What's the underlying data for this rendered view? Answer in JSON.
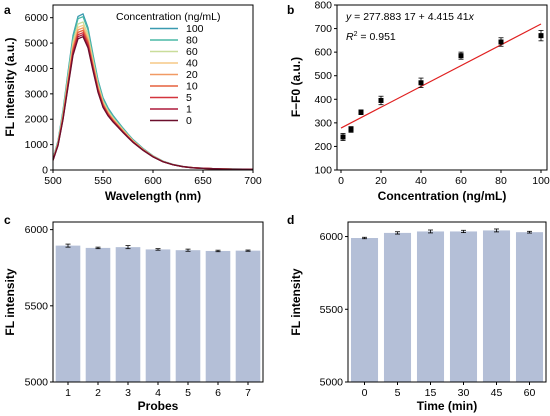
{
  "panels": {
    "a": {
      "letter": "a"
    },
    "b": {
      "letter": "b"
    },
    "c": {
      "letter": "c"
    },
    "d": {
      "letter": "d"
    }
  },
  "chart_data": [
    {
      "panel": "a",
      "type": "line",
      "xlabel": "Wavelength (nm)",
      "ylabel": "FL intensity (a.u.)",
      "xlim": [
        500,
        700
      ],
      "ylim": [
        0,
        6500
      ],
      "xticks": [
        500,
        550,
        600,
        650,
        700
      ],
      "yticks": [
        0,
        1000,
        2000,
        3000,
        4000,
        5000,
        6000
      ],
      "legend": {
        "title": "Concentration (ng/mL)",
        "placement": "top-right"
      },
      "x": [
        500,
        505,
        510,
        515,
        520,
        525,
        530,
        535,
        540,
        545,
        550,
        555,
        560,
        565,
        570,
        575,
        580,
        590,
        600,
        610,
        620,
        630,
        640,
        650,
        660,
        670,
        680,
        690,
        700
      ],
      "series": [
        {
          "name": "100",
          "color": "#3a9ab0",
          "values": [
            450,
            1150,
            2350,
            3850,
            5300,
            6050,
            6150,
            5600,
            4550,
            3550,
            2850,
            2450,
            2150,
            1900,
            1650,
            1420,
            1200,
            850,
            560,
            350,
            220,
            140,
            95,
            70,
            55,
            45,
            40,
            35,
            30
          ]
        },
        {
          "name": "80",
          "color": "#4ab8a6",
          "values": [
            440,
            1120,
            2300,
            3780,
            5220,
            5960,
            6040,
            5520,
            4490,
            3500,
            2810,
            2410,
            2120,
            1870,
            1630,
            1400,
            1185,
            840,
            555,
            345,
            218,
            138,
            94,
            69,
            54,
            44,
            39,
            34,
            29
          ]
        },
        {
          "name": "60",
          "color": "#c9dd9a",
          "values": [
            425,
            1080,
            2220,
            3650,
            5050,
            5750,
            5830,
            5330,
            4340,
            3390,
            2720,
            2340,
            2060,
            1820,
            1590,
            1370,
            1160,
            825,
            545,
            340,
            214,
            136,
            92,
            68,
            53,
            43,
            38,
            33,
            28
          ]
        },
        {
          "name": "40",
          "color": "#f5c986",
          "values": [
            415,
            1050,
            2160,
            3550,
            4920,
            5620,
            5700,
            5210,
            4240,
            3310,
            2660,
            2290,
            2020,
            1790,
            1560,
            1350,
            1145,
            815,
            540,
            335,
            212,
            134,
            91,
            67,
            52,
            42,
            37,
            32,
            27
          ]
        },
        {
          "name": "20",
          "color": "#f19a64",
          "values": [
            408,
            1030,
            2120,
            3490,
            4830,
            5520,
            5600,
            5120,
            4170,
            3260,
            2620,
            2250,
            1990,
            1760,
            1540,
            1330,
            1130,
            805,
            535,
            332,
            210,
            133,
            90,
            66,
            52,
            42,
            37,
            32,
            27
          ]
        },
        {
          "name": "10",
          "color": "#e5603d",
          "values": [
            400,
            1010,
            2080,
            3420,
            4740,
            5420,
            5500,
            5030,
            4100,
            3200,
            2580,
            2220,
            1960,
            1740,
            1520,
            1315,
            1118,
            798,
            530,
            330,
            208,
            132,
            89,
            66,
            51,
            41,
            36,
            31,
            26
          ]
        },
        {
          "name": "5",
          "color": "#d3343d",
          "values": [
            393,
            995,
            2045,
            3365,
            4660,
            5330,
            5410,
            4950,
            4030,
            3150,
            2540,
            2190,
            1935,
            1720,
            1505,
            1300,
            1105,
            790,
            525,
            327,
            206,
            131,
            88,
            65,
            51,
            41,
            36,
            31,
            26
          ]
        },
        {
          "name": "1",
          "color": "#ad1a3b",
          "values": [
            386,
            978,
            2010,
            3310,
            4590,
            5250,
            5330,
            4880,
            3970,
            3100,
            2500,
            2160,
            1910,
            1700,
            1490,
            1288,
            1095,
            783,
            520,
            325,
            205,
            130,
            88,
            65,
            50,
            40,
            35,
            30,
            25
          ]
        },
        {
          "name": "0",
          "color": "#6b0f2c",
          "values": [
            380,
            962,
            1980,
            3260,
            4520,
            5170,
            5250,
            4810,
            3910,
            3060,
            2470,
            2135,
            1890,
            1685,
            1478,
            1278,
            1087,
            777,
            516,
            322,
            203,
            129,
            87,
            64,
            50,
            40,
            35,
            30,
            25
          ]
        }
      ]
    },
    {
      "panel": "b",
      "type": "scatter",
      "xlabel": "Concentration (ng/mL)",
      "ylabel": "F−F0 (a.u.)",
      "xlim": [
        -2,
        103
      ],
      "ylim": [
        100,
        800
      ],
      "xticks": [
        0,
        20,
        40,
        60,
        80,
        100
      ],
      "yticks": [
        100,
        200,
        300,
        400,
        500,
        600,
        700,
        800
      ],
      "x": [
        1,
        5,
        10,
        20,
        40,
        60,
        80,
        100
      ],
      "y": [
        240,
        272,
        345,
        395,
        470,
        585,
        643,
        670
      ],
      "err": [
        15,
        12,
        10,
        18,
        20,
        15,
        18,
        22
      ],
      "fit": {
        "intercept": 277.88317,
        "slope": 4.41541,
        "x_range": [
          0,
          100
        ],
        "color": "#e02020"
      },
      "equation_parts": {
        "y": "y",
        "eq": " = 277.883 17 + 4.415 41",
        "x": "x"
      },
      "r2_parts": {
        "r": "R",
        "sup": "2",
        "rest": " = 0.951"
      },
      "grid": false
    },
    {
      "panel": "c",
      "type": "bar",
      "xlabel": "Probes",
      "ylabel": "FL intensity",
      "categories": [
        "1",
        "2",
        "3",
        "4",
        "5",
        "6",
        "7"
      ],
      "values": [
        5895,
        5880,
        5885,
        5870,
        5865,
        5860,
        5862
      ],
      "err": [
        10,
        5,
        10,
        5,
        7,
        5,
        4
      ],
      "ylim": [
        5000,
        6050
      ],
      "yticks": [
        5000,
        5500,
        6000
      ],
      "bar_color": "#b4bfd7"
    },
    {
      "panel": "d",
      "type": "bar",
      "xlabel": "Time (min)",
      "ylabel": "FL intensity",
      "categories": [
        "0",
        "5",
        "15",
        "30",
        "45",
        "60"
      ],
      "values": [
        5990,
        6025,
        6035,
        6035,
        6042,
        6030
      ],
      "err": [
        5,
        8,
        10,
        8,
        10,
        6
      ],
      "ylim": [
        5000,
        6100
      ],
      "yticks": [
        5000,
        5500,
        6000
      ],
      "bar_color": "#b4bfd7"
    }
  ]
}
